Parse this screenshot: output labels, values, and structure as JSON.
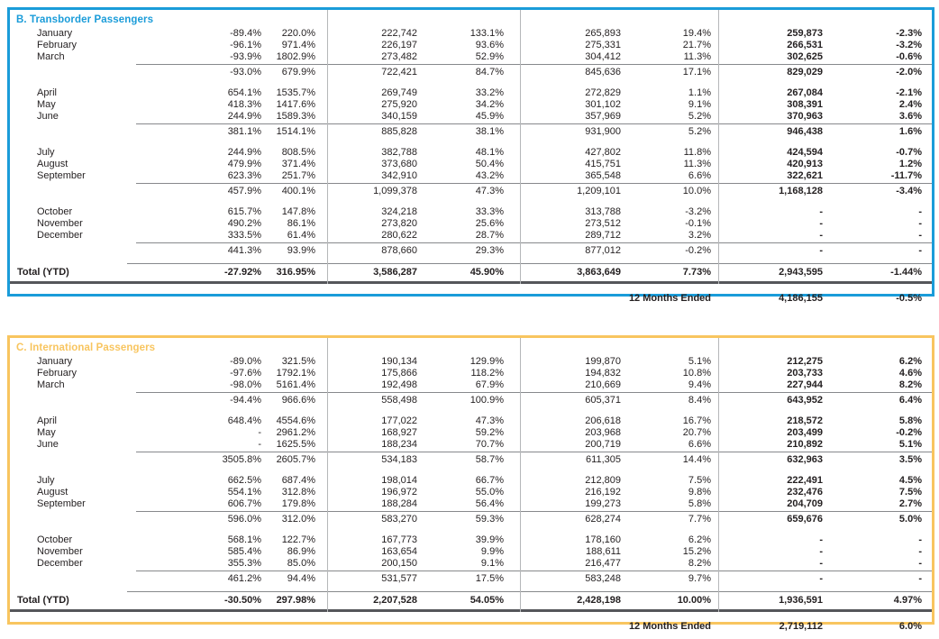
{
  "colors": {
    "transborder_accent": "#1a9cd9",
    "international_accent": "#f8c55f",
    "heavy_rule": "#55565a",
    "light_rule": "#87898c",
    "column_divider": "#b5b7b9",
    "text": "#231f20"
  },
  "tables": [
    {
      "title": "B. Transborder Passengers",
      "accent": "#1a9cd9",
      "rows": [
        {
          "type": "month",
          "label": "January",
          "values": [
            "-89.4%",
            "220.0%",
            "222,742",
            "133.1%",
            "265,893",
            "19.4%",
            "259,873",
            "-2.3%"
          ]
        },
        {
          "type": "month",
          "label": "February",
          "values": [
            "-96.1%",
            "971.4%",
            "226,197",
            "93.6%",
            "275,331",
            "21.7%",
            "266,531",
            "-3.2%"
          ]
        },
        {
          "type": "month",
          "label": "March",
          "values": [
            "-93.9%",
            "1802.9%",
            "273,482",
            "52.9%",
            "304,412",
            "11.3%",
            "302,625",
            "-0.6%"
          ]
        },
        {
          "type": "subtotal",
          "label": "",
          "values": [
            "-93.0%",
            "679.9%",
            "722,421",
            "84.7%",
            "845,636",
            "17.1%",
            "829,029",
            "-2.0%"
          ]
        },
        {
          "type": "spacer"
        },
        {
          "type": "month",
          "label": "April",
          "values": [
            "654.1%",
            "1535.7%",
            "269,749",
            "33.2%",
            "272,829",
            "1.1%",
            "267,084",
            "-2.1%"
          ]
        },
        {
          "type": "month",
          "label": "May",
          "values": [
            "418.3%",
            "1417.6%",
            "275,920",
            "34.2%",
            "301,102",
            "9.1%",
            "308,391",
            "2.4%"
          ]
        },
        {
          "type": "month",
          "label": "June",
          "values": [
            "244.9%",
            "1589.3%",
            "340,159",
            "45.9%",
            "357,969",
            "5.2%",
            "370,963",
            "3.6%"
          ]
        },
        {
          "type": "subtotal",
          "label": "",
          "values": [
            "381.1%",
            "1514.1%",
            "885,828",
            "38.1%",
            "931,900",
            "5.2%",
            "946,438",
            "1.6%"
          ]
        },
        {
          "type": "spacer"
        },
        {
          "type": "month",
          "label": "July",
          "values": [
            "244.9%",
            "808.5%",
            "382,788",
            "48.1%",
            "427,802",
            "11.8%",
            "424,594",
            "-0.7%"
          ]
        },
        {
          "type": "month",
          "label": "August",
          "values": [
            "479.9%",
            "371.4%",
            "373,680",
            "50.4%",
            "415,751",
            "11.3%",
            "420,913",
            "1.2%"
          ]
        },
        {
          "type": "month",
          "label": "September",
          "values": [
            "623.3%",
            "251.7%",
            "342,910",
            "43.2%",
            "365,548",
            "6.6%",
            "322,621",
            "-11.7%"
          ]
        },
        {
          "type": "subtotal",
          "label": "",
          "values": [
            "457.9%",
            "400.1%",
            "1,099,378",
            "47.3%",
            "1,209,101",
            "10.0%",
            "1,168,128",
            "-3.4%"
          ]
        },
        {
          "type": "spacer"
        },
        {
          "type": "month",
          "label": "October",
          "values": [
            "615.7%",
            "147.8%",
            "324,218",
            "33.3%",
            "313,788",
            "-3.2%",
            "-",
            "-"
          ]
        },
        {
          "type": "month",
          "label": "November",
          "values": [
            "490.2%",
            "86.1%",
            "273,820",
            "25.6%",
            "273,512",
            "-0.1%",
            "-",
            "-"
          ]
        },
        {
          "type": "month",
          "label": "December",
          "values": [
            "333.5%",
            "61.4%",
            "280,622",
            "28.7%",
            "289,712",
            "3.2%",
            "-",
            "-"
          ]
        },
        {
          "type": "subtotal",
          "label": "",
          "values": [
            "441.3%",
            "93.9%",
            "878,660",
            "29.3%",
            "877,012",
            "-0.2%",
            "-",
            "-"
          ]
        },
        {
          "type": "total",
          "label": "Total (YTD)",
          "values": [
            "-27.92%",
            "316.95%",
            "3,586,287",
            "45.90%",
            "3,863,649",
            "7.73%",
            "2,943,595",
            "-1.44%"
          ]
        }
      ],
      "twelve_months": {
        "label": "12 Months Ended",
        "value": "4,186,155",
        "pct": "-0.5%"
      }
    },
    {
      "title": "C. International Passengers",
      "accent": "#f8c55f",
      "rows": [
        {
          "type": "month",
          "label": "January",
          "values": [
            "-89.0%",
            "321.5%",
            "190,134",
            "129.9%",
            "199,870",
            "5.1%",
            "212,275",
            "6.2%"
          ]
        },
        {
          "type": "month",
          "label": "February",
          "values": [
            "-97.6%",
            "1792.1%",
            "175,866",
            "118.2%",
            "194,832",
            "10.8%",
            "203,733",
            "4.6%"
          ]
        },
        {
          "type": "month",
          "label": "March",
          "values": [
            "-98.0%",
            "5161.4%",
            "192,498",
            "67.9%",
            "210,669",
            "9.4%",
            "227,944",
            "8.2%"
          ]
        },
        {
          "type": "subtotal",
          "label": "",
          "values": [
            "-94.4%",
            "966.6%",
            "558,498",
            "100.9%",
            "605,371",
            "8.4%",
            "643,952",
            "6.4%"
          ]
        },
        {
          "type": "spacer"
        },
        {
          "type": "month",
          "label": "April",
          "values": [
            "648.4%",
            "4554.6%",
            "177,022",
            "47.3%",
            "206,618",
            "16.7%",
            "218,572",
            "5.8%"
          ]
        },
        {
          "type": "month",
          "label": "May",
          "values": [
            "-",
            "2961.2%",
            "168,927",
            "59.2%",
            "203,968",
            "20.7%",
            "203,499",
            "-0.2%"
          ]
        },
        {
          "type": "month",
          "label": "June",
          "values": [
            "-",
            "1625.5%",
            "188,234",
            "70.7%",
            "200,719",
            "6.6%",
            "210,892",
            "5.1%"
          ]
        },
        {
          "type": "subtotal",
          "label": "",
          "values": [
            "3505.8%",
            "2605.7%",
            "534,183",
            "58.7%",
            "611,305",
            "14.4%",
            "632,963",
            "3.5%"
          ]
        },
        {
          "type": "spacer"
        },
        {
          "type": "month",
          "label": "July",
          "values": [
            "662.5%",
            "687.4%",
            "198,014",
            "66.7%",
            "212,809",
            "7.5%",
            "222,491",
            "4.5%"
          ]
        },
        {
          "type": "month",
          "label": "August",
          "values": [
            "554.1%",
            "312.8%",
            "196,972",
            "55.0%",
            "216,192",
            "9.8%",
            "232,476",
            "7.5%"
          ]
        },
        {
          "type": "month",
          "label": "September",
          "values": [
            "606.7%",
            "179.8%",
            "188,284",
            "56.4%",
            "199,273",
            "5.8%",
            "204,709",
            "2.7%"
          ]
        },
        {
          "type": "subtotal",
          "label": "",
          "values": [
            "596.0%",
            "312.0%",
            "583,270",
            "59.3%",
            "628,274",
            "7.7%",
            "659,676",
            "5.0%"
          ]
        },
        {
          "type": "spacer"
        },
        {
          "type": "month",
          "label": "October",
          "values": [
            "568.1%",
            "122.7%",
            "167,773",
            "39.9%",
            "178,160",
            "6.2%",
            "-",
            "-"
          ]
        },
        {
          "type": "month",
          "label": "November",
          "values": [
            "585.4%",
            "86.9%",
            "163,654",
            "9.9%",
            "188,611",
            "15.2%",
            "-",
            "-"
          ]
        },
        {
          "type": "month",
          "label": "December",
          "values": [
            "355.3%",
            "85.0%",
            "200,150",
            "9.1%",
            "216,477",
            "8.2%",
            "-",
            "-"
          ]
        },
        {
          "type": "subtotal",
          "label": "",
          "values": [
            "461.2%",
            "94.4%",
            "531,577",
            "17.5%",
            "583,248",
            "9.7%",
            "-",
            "-"
          ]
        },
        {
          "type": "total",
          "label": "Total (YTD)",
          "values": [
            "-30.50%",
            "297.98%",
            "2,207,528",
            "54.05%",
            "2,428,198",
            "10.00%",
            "1,936,591",
            "4.97%"
          ]
        }
      ],
      "twelve_months": {
        "label": "12 Months Ended",
        "value": "2,719,112",
        "pct": "6.0%"
      }
    }
  ]
}
